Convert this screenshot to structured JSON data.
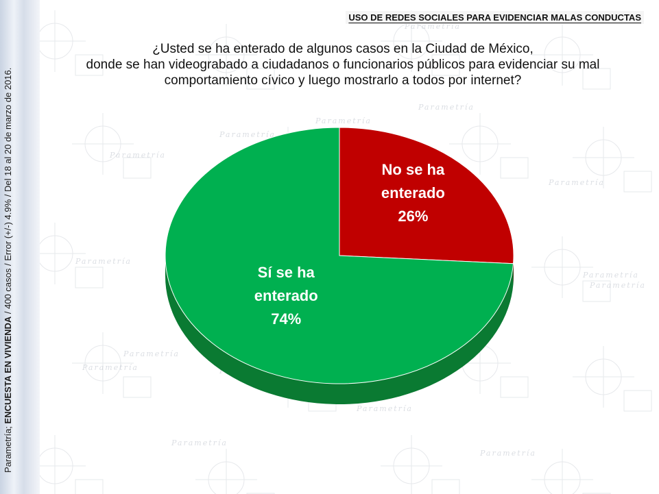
{
  "header": {
    "title": "USO DE REDES SOCIALES PARA EVIDENCIAR MALAS CONDUCTAS"
  },
  "question": {
    "lines": [
      "¿Usted se ha enterado de algunos casos en la Ciudad de México,",
      "donde se han videograbado a ciudadanos o funcionarios públicos para evidenciar su mal",
      "comportamiento cívico y luego mostrarlo a todos por internet?"
    ]
  },
  "sidebar": {
    "prefix": "Parametría; ",
    "survey": "ENCUESTA EN VIVIENDA",
    "details": " / 400 casos / Error (+/-) 4.9% / Del 18 al 20 de marzo de 2016."
  },
  "watermark": {
    "text": "Parametría"
  },
  "colors": {
    "no": "#c00000",
    "yes": "#00b050",
    "no_side": "#7a0000",
    "yes_side": "#0a7a32"
  },
  "chart_data": {
    "type": "pie",
    "title": "",
    "slices": [
      {
        "label_lines": [
          "No se ha",
          "enterado"
        ],
        "value": 26,
        "value_label": "26%",
        "color": "#c00000"
      },
      {
        "label_lines": [
          "Sí se ha",
          "enterado"
        ],
        "value": 74,
        "value_label": "74%",
        "color": "#00b050"
      }
    ]
  }
}
